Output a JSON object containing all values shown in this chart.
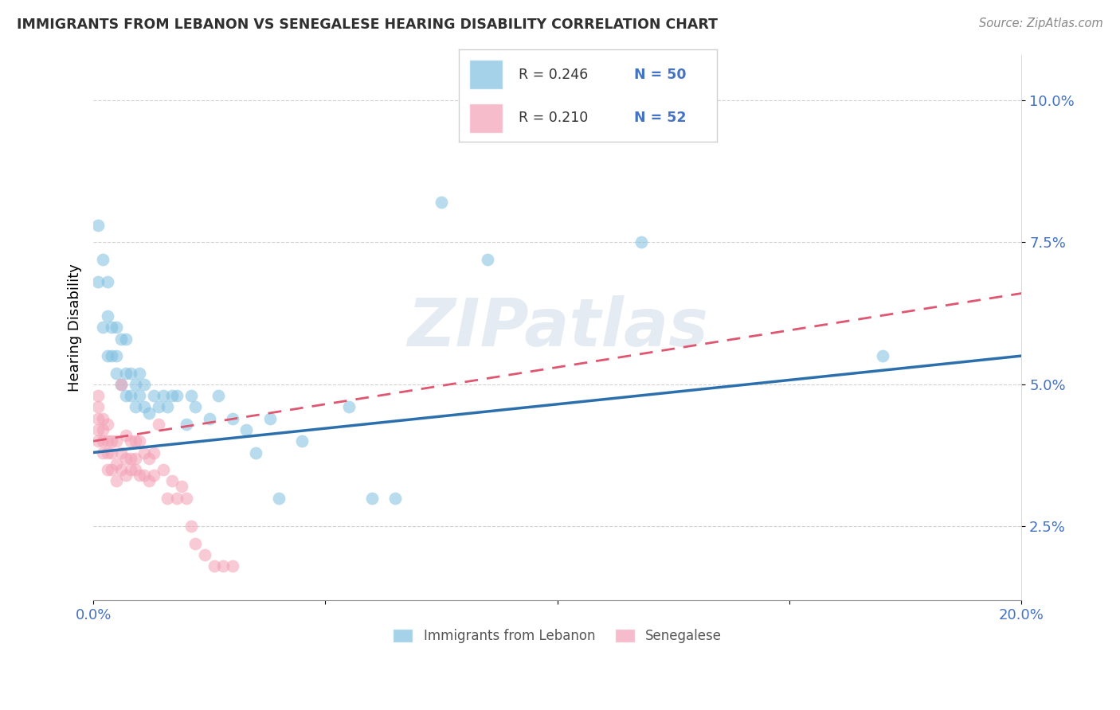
{
  "title": "IMMIGRANTS FROM LEBANON VS SENEGALESE HEARING DISABILITY CORRELATION CHART",
  "source": "Source: ZipAtlas.com",
  "ylabel": "Hearing Disability",
  "xlim": [
    0.0,
    0.2
  ],
  "ylim": [
    0.012,
    0.108
  ],
  "xticks": [
    0.0,
    0.05,
    0.1,
    0.15,
    0.2
  ],
  "xtick_labels": [
    "0.0%",
    "",
    "",
    "",
    "20.0%"
  ],
  "yticks": [
    0.025,
    0.05,
    0.075,
    0.1
  ],
  "ytick_labels": [
    "2.5%",
    "5.0%",
    "7.5%",
    "10.0%"
  ],
  "blue_color": "#7fbfdf",
  "pink_color": "#f4a0b5",
  "blue_line_color": "#2c6fad",
  "pink_line_color": "#e05570",
  "watermark": "ZIPatlas",
  "blue_x": [
    0.001,
    0.001,
    0.002,
    0.002,
    0.003,
    0.003,
    0.003,
    0.004,
    0.004,
    0.005,
    0.005,
    0.005,
    0.006,
    0.006,
    0.007,
    0.007,
    0.007,
    0.008,
    0.008,
    0.009,
    0.009,
    0.01,
    0.01,
    0.011,
    0.011,
    0.012,
    0.013,
    0.014,
    0.015,
    0.016,
    0.017,
    0.018,
    0.02,
    0.021,
    0.022,
    0.025,
    0.027,
    0.03,
    0.033,
    0.035,
    0.038,
    0.04,
    0.045,
    0.055,
    0.06,
    0.065,
    0.075,
    0.085,
    0.118,
    0.17
  ],
  "blue_y": [
    0.068,
    0.078,
    0.06,
    0.072,
    0.055,
    0.062,
    0.068,
    0.055,
    0.06,
    0.052,
    0.055,
    0.06,
    0.05,
    0.058,
    0.048,
    0.052,
    0.058,
    0.048,
    0.052,
    0.046,
    0.05,
    0.048,
    0.052,
    0.046,
    0.05,
    0.045,
    0.048,
    0.046,
    0.048,
    0.046,
    0.048,
    0.048,
    0.043,
    0.048,
    0.046,
    0.044,
    0.048,
    0.044,
    0.042,
    0.038,
    0.044,
    0.03,
    0.04,
    0.046,
    0.03,
    0.03,
    0.082,
    0.072,
    0.075,
    0.055
  ],
  "pink_x": [
    0.001,
    0.001,
    0.001,
    0.001,
    0.001,
    0.002,
    0.002,
    0.002,
    0.002,
    0.003,
    0.003,
    0.003,
    0.003,
    0.004,
    0.004,
    0.004,
    0.005,
    0.005,
    0.005,
    0.006,
    0.006,
    0.006,
    0.007,
    0.007,
    0.007,
    0.008,
    0.008,
    0.008,
    0.009,
    0.009,
    0.009,
    0.01,
    0.01,
    0.011,
    0.011,
    0.012,
    0.012,
    0.013,
    0.013,
    0.014,
    0.015,
    0.016,
    0.017,
    0.018,
    0.019,
    0.02,
    0.021,
    0.022,
    0.024,
    0.026,
    0.028,
    0.03
  ],
  "pink_y": [
    0.04,
    0.042,
    0.044,
    0.046,
    0.048,
    0.038,
    0.04,
    0.042,
    0.044,
    0.035,
    0.038,
    0.04,
    0.043,
    0.035,
    0.038,
    0.04,
    0.033,
    0.036,
    0.04,
    0.035,
    0.038,
    0.05,
    0.034,
    0.037,
    0.041,
    0.035,
    0.037,
    0.04,
    0.035,
    0.037,
    0.04,
    0.034,
    0.04,
    0.034,
    0.038,
    0.033,
    0.037,
    0.034,
    0.038,
    0.043,
    0.035,
    0.03,
    0.033,
    0.03,
    0.032,
    0.03,
    0.025,
    0.022,
    0.02,
    0.018,
    0.018,
    0.018
  ],
  "blue_line_x0": 0.0,
  "blue_line_y0": 0.038,
  "blue_line_x1": 0.2,
  "blue_line_y1": 0.055,
  "pink_line_x0": 0.0,
  "pink_line_y0": 0.04,
  "pink_line_x1": 0.2,
  "pink_line_y1": 0.066
}
